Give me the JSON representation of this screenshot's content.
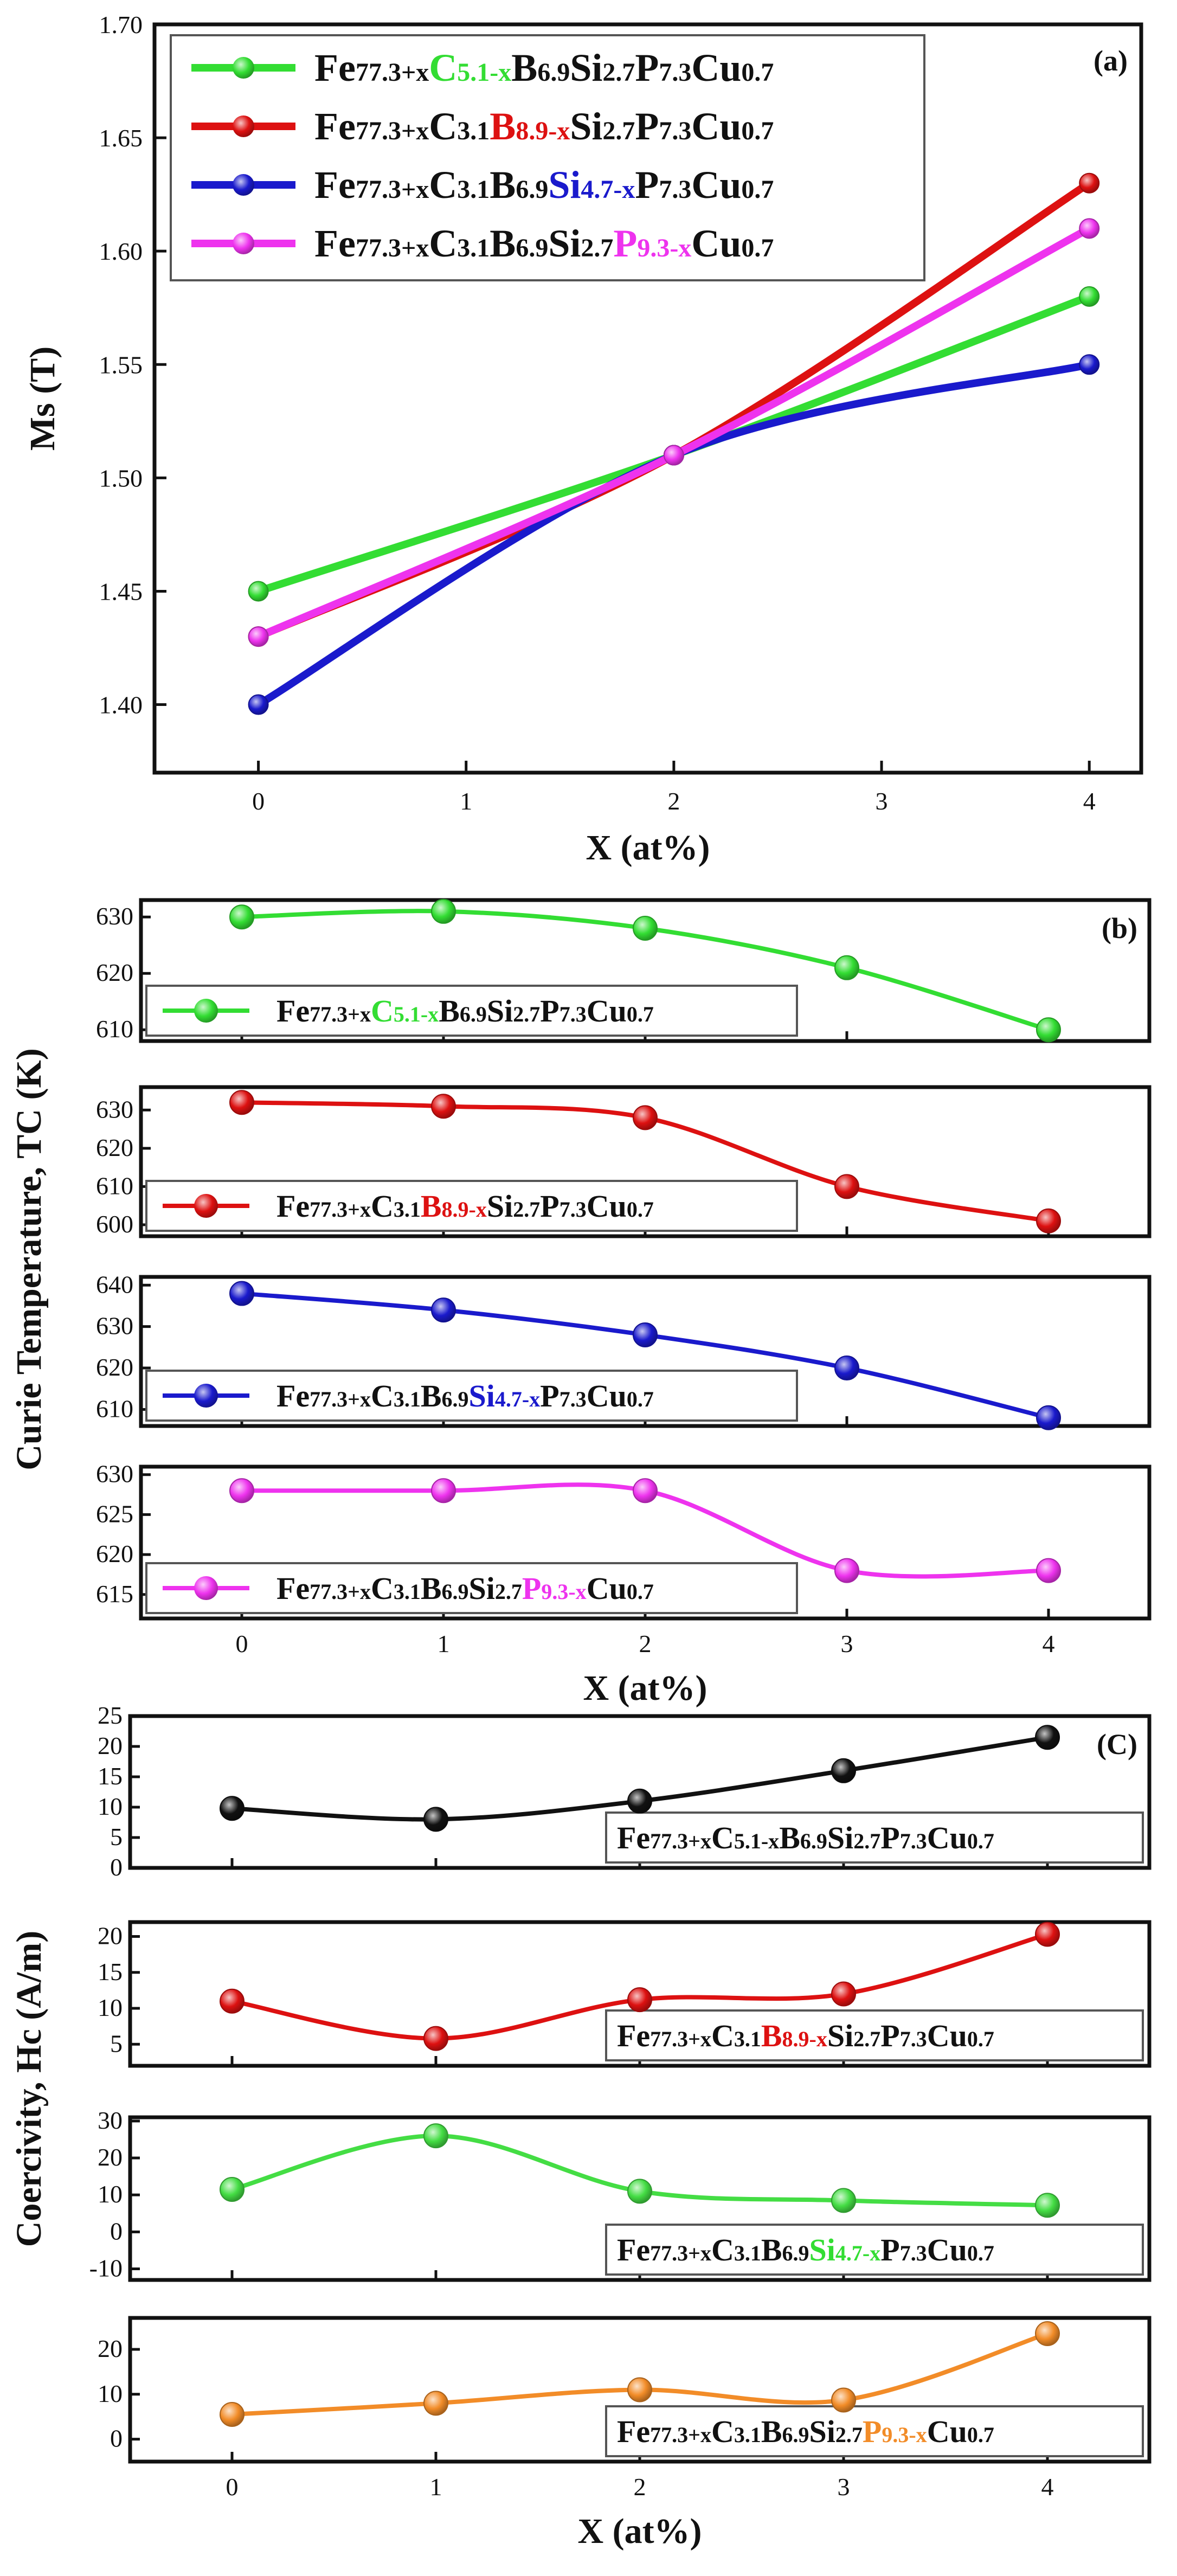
{
  "chart_data": [
    {
      "type": "line",
      "panel_label": "(a)",
      "xlabel": "X (at%)",
      "ylabel": "Ms (T)",
      "xlim": [
        -0.5,
        4.25
      ],
      "ylim": [
        1.37,
        1.7
      ],
      "x_ticks": [
        "0",
        "1",
        "2",
        "3",
        "4"
      ],
      "y_ticks": [
        "1.40",
        "1.45",
        "1.50",
        "1.55",
        "1.60",
        "1.65",
        "1.70"
      ],
      "legend_position": "top-left",
      "series": [
        {
          "name": "Fe77.3+xC5.1-xB6.9Si2.7P7.3Cu0.7",
          "color": "#33dd33",
          "x": [
            0,
            2,
            4
          ],
          "values": [
            1.45,
            1.51,
            1.58
          ],
          "legend": [
            [
              "Fe",
              "#111",
              "n"
            ],
            [
              "77.3+x",
              "#111",
              "s"
            ],
            [
              "C",
              "#33dd33",
              "n"
            ],
            [
              "5.1-x",
              "#33dd33",
              "s"
            ],
            [
              "B",
              "#111",
              "n"
            ],
            [
              "6.9",
              "#111",
              "s"
            ],
            [
              "Si",
              "#111",
              "n"
            ],
            [
              "2.7",
              "#111",
              "s"
            ],
            [
              "P",
              "#111",
              "n"
            ],
            [
              "7.3",
              "#111",
              "s"
            ],
            [
              "Cu",
              "#111",
              "n"
            ],
            [
              "0.7",
              "#111",
              "s"
            ]
          ]
        },
        {
          "name": "Fe77.3+xC3.1B8.9-xSi2.7P7.3Cu0.7",
          "color": "#dd1111",
          "x": [
            0,
            2,
            4
          ],
          "values": [
            1.43,
            1.51,
            1.63
          ],
          "legend": [
            [
              "Fe",
              "#111",
              "n"
            ],
            [
              "77.3+x",
              "#111",
              "s"
            ],
            [
              "C",
              "#111",
              "n"
            ],
            [
              "3.1",
              "#111",
              "s"
            ],
            [
              "B",
              "#dd1111",
              "n"
            ],
            [
              "8.9-x",
              "#dd1111",
              "s"
            ],
            [
              "Si",
              "#111",
              "n"
            ],
            [
              "2.7",
              "#111",
              "s"
            ],
            [
              "P",
              "#111",
              "n"
            ],
            [
              "7.3",
              "#111",
              "s"
            ],
            [
              "Cu",
              "#111",
              "n"
            ],
            [
              "0.7",
              "#111",
              "s"
            ]
          ]
        },
        {
          "name": "Fe77.3+xC3.1B6.9Si4.7-xP7.3Cu0.7",
          "color": "#1a1acc",
          "x": [
            0,
            2,
            4
          ],
          "values": [
            1.4,
            1.51,
            1.55
          ],
          "legend": [
            [
              "Fe",
              "#111",
              "n"
            ],
            [
              "77.3+x",
              "#111",
              "s"
            ],
            [
              "C",
              "#111",
              "n"
            ],
            [
              "3.1",
              "#111",
              "s"
            ],
            [
              "B",
              "#111",
              "n"
            ],
            [
              "6.9",
              "#111",
              "s"
            ],
            [
              "Si",
              "#1a1acc",
              "n"
            ],
            [
              "4.7-x",
              "#1a1acc",
              "s"
            ],
            [
              "P",
              "#111",
              "n"
            ],
            [
              "7.3",
              "#111",
              "s"
            ],
            [
              "Cu",
              "#111",
              "n"
            ],
            [
              "0.7",
              "#111",
              "s"
            ]
          ]
        },
        {
          "name": "Fe77.3+xC3.1B6.9Si2.7P9.3-xCu0.7",
          "color": "#ee33ee",
          "x": [
            0,
            2,
            4
          ],
          "values": [
            1.43,
            1.51,
            1.61
          ],
          "legend": [
            [
              "Fe",
              "#111",
              "n"
            ],
            [
              "77.3+x",
              "#111",
              "s"
            ],
            [
              "C",
              "#111",
              "n"
            ],
            [
              "3.1",
              "#111",
              "s"
            ],
            [
              "B",
              "#111",
              "n"
            ],
            [
              "6.9",
              "#111",
              "s"
            ],
            [
              "Si",
              "#111",
              "n"
            ],
            [
              "2.7",
              "#111",
              "s"
            ],
            [
              "P",
              "#ee33ee",
              "n"
            ],
            [
              "9.3-x",
              "#ee33ee",
              "s"
            ],
            [
              "Cu",
              "#111",
              "n"
            ],
            [
              "0.7",
              "#111",
              "s"
            ]
          ]
        }
      ]
    },
    {
      "type": "line",
      "panel_label": "(b)",
      "xlabel": "X (at%)",
      "ylabel": "Curie Temperature, TC (K)",
      "xlim": [
        -0.5,
        4.5
      ],
      "x_ticks": [
        "0",
        "1",
        "2",
        "3",
        "4"
      ],
      "subplots": [
        {
          "name": "Fe77.3+xC5.1-xB6.9Si2.7P7.3Cu0.7",
          "color": "#33dd33",
          "ylim": [
            608,
            633
          ],
          "y_ticks": [
            610,
            620,
            630
          ],
          "x": [
            0,
            1,
            2,
            3,
            4
          ],
          "values": [
            630,
            631,
            628,
            621,
            610
          ],
          "legend_position": "bottom-left",
          "legend": [
            [
              "Fe",
              "#111",
              "n"
            ],
            [
              "77.3+x",
              "#111",
              "s"
            ],
            [
              "C",
              "#33dd33",
              "n"
            ],
            [
              "5.1-x",
              "#33dd33",
              "s"
            ],
            [
              "B",
              "#111",
              "n"
            ],
            [
              "6.9",
              "#111",
              "s"
            ],
            [
              "Si",
              "#111",
              "n"
            ],
            [
              "2.7",
              "#111",
              "s"
            ],
            [
              "P",
              "#111",
              "n"
            ],
            [
              "7.3",
              "#111",
              "s"
            ],
            [
              "Cu",
              "#111",
              "n"
            ],
            [
              "0.7",
              "#111",
              "s"
            ]
          ]
        },
        {
          "name": "Fe77.3+xC3.1B8.9-xSi2.7P7.3Cu0.7",
          "color": "#dd1111",
          "ylim": [
            597,
            636
          ],
          "y_ticks": [
            600,
            610,
            620,
            630
          ],
          "x": [
            0,
            1,
            2,
            3,
            4
          ],
          "values": [
            632,
            631,
            628,
            610,
            601
          ],
          "legend_position": "bottom-left",
          "legend": [
            [
              "Fe",
              "#111",
              "n"
            ],
            [
              "77.3+x",
              "#111",
              "s"
            ],
            [
              "C",
              "#111",
              "n"
            ],
            [
              "3.1",
              "#111",
              "s"
            ],
            [
              "B",
              "#dd1111",
              "n"
            ],
            [
              "8.9-x",
              "#dd1111",
              "s"
            ],
            [
              "Si",
              "#111",
              "n"
            ],
            [
              "2.7",
              "#111",
              "s"
            ],
            [
              "P",
              "#111",
              "n"
            ],
            [
              "7.3",
              "#111",
              "s"
            ],
            [
              "Cu",
              "#111",
              "n"
            ],
            [
              "0.7",
              "#111",
              "s"
            ]
          ]
        },
        {
          "name": "Fe77.3+xC3.1B6.9Si4.7-xP7.3Cu0.7",
          "color": "#1a1acc",
          "ylim": [
            606,
            642
          ],
          "y_ticks": [
            610,
            620,
            630,
            640
          ],
          "x": [
            0,
            1,
            2,
            3,
            4
          ],
          "values": [
            638,
            634,
            628,
            620,
            608
          ],
          "legend_position": "bottom-left",
          "legend": [
            [
              "Fe",
              "#111",
              "n"
            ],
            [
              "77.3+x",
              "#111",
              "s"
            ],
            [
              "C",
              "#111",
              "n"
            ],
            [
              "3.1",
              "#111",
              "s"
            ],
            [
              "B",
              "#111",
              "n"
            ],
            [
              "6.9",
              "#111",
              "s"
            ],
            [
              "Si",
              "#1a1acc",
              "n"
            ],
            [
              "4.7-x",
              "#1a1acc",
              "s"
            ],
            [
              "P",
              "#111",
              "n"
            ],
            [
              "7.3",
              "#111",
              "s"
            ],
            [
              "Cu",
              "#111",
              "n"
            ],
            [
              "0.7",
              "#111",
              "s"
            ]
          ]
        },
        {
          "name": "Fe77.3+xC3.1B6.9Si2.7P9.3-xCu0.7",
          "color": "#ee33ee",
          "ylim": [
            612,
            631
          ],
          "y_ticks": [
            615,
            620,
            625,
            630
          ],
          "x": [
            0,
            1,
            2,
            3,
            4
          ],
          "values": [
            628,
            628,
            628,
            618,
            618
          ],
          "legend_position": "bottom-left",
          "legend": [
            [
              "Fe",
              "#111",
              "n"
            ],
            [
              "77.3+x",
              "#111",
              "s"
            ],
            [
              "C",
              "#111",
              "n"
            ],
            [
              "3.1",
              "#111",
              "s"
            ],
            [
              "B",
              "#111",
              "n"
            ],
            [
              "6.9",
              "#111",
              "s"
            ],
            [
              "Si",
              "#111",
              "n"
            ],
            [
              "2.7",
              "#111",
              "s"
            ],
            [
              "P",
              "#ee33ee",
              "n"
            ],
            [
              "9.3-x",
              "#ee33ee",
              "s"
            ],
            [
              "Cu",
              "#111",
              "n"
            ],
            [
              "0.7",
              "#111",
              "s"
            ]
          ]
        }
      ]
    },
    {
      "type": "line",
      "panel_label": "(C)",
      "xlabel": "X (at%)",
      "ylabel": "Coercivity, Hc (A/m)",
      "xlim": [
        -0.5,
        4.5
      ],
      "x_ticks": [
        "0",
        "1",
        "2",
        "3",
        "4"
      ],
      "subplots": [
        {
          "name": "Fe77.3+xC5.1-xB6.9Si2.7P7.3Cu0.7",
          "color": "#111111",
          "ylim": [
            0,
            25
          ],
          "y_ticks": [
            0,
            5,
            10,
            15,
            20,
            25
          ],
          "x": [
            0,
            1,
            2,
            3,
            4
          ],
          "values": [
            9.8,
            8,
            11,
            16,
            21.5
          ],
          "legend_position": "bottom-right",
          "legend": [
            [
              "Fe",
              "#111",
              "n"
            ],
            [
              "77.3+x",
              "#111",
              "s"
            ],
            [
              "C",
              "#111",
              "n"
            ],
            [
              "5.1-x",
              "#111",
              "s"
            ],
            [
              "B",
              "#111",
              "n"
            ],
            [
              "6.9",
              "#111",
              "s"
            ],
            [
              "Si",
              "#111",
              "n"
            ],
            [
              "2.7",
              "#111",
              "s"
            ],
            [
              "P",
              "#111",
              "n"
            ],
            [
              "7.3",
              "#111",
              "s"
            ],
            [
              "Cu",
              "#111",
              "n"
            ],
            [
              "0.7",
              "#111",
              "s"
            ]
          ]
        },
        {
          "name": "Fe77.3+xC3.1B8.9-xSi2.7P7.3Cu0.7",
          "color": "#dd1111",
          "ylim": [
            2,
            22
          ],
          "y_ticks": [
            5,
            10,
            15,
            20
          ],
          "x": [
            0,
            1,
            2,
            3,
            4
          ],
          "values": [
            11,
            5.8,
            11.2,
            12,
            20.3
          ],
          "legend_position": "bottom-right",
          "legend": [
            [
              "Fe",
              "#111",
              "n"
            ],
            [
              "77.3+x",
              "#111",
              "s"
            ],
            [
              "C",
              "#111",
              "n"
            ],
            [
              "3.1",
              "#111",
              "s"
            ],
            [
              "B",
              "#dd1111",
              "n"
            ],
            [
              "8.9-x",
              "#dd1111",
              "s"
            ],
            [
              "Si",
              "#111",
              "n"
            ],
            [
              "2.7",
              "#111",
              "s"
            ],
            [
              "P",
              "#111",
              "n"
            ],
            [
              "7.3",
              "#111",
              "s"
            ],
            [
              "Cu",
              "#111",
              "n"
            ],
            [
              "0.7",
              "#111",
              "s"
            ]
          ]
        },
        {
          "name": "Fe77.3+xC3.1B6.9Si4.7-xP7.3Cu0.7",
          "color": "#44dd44",
          "ylim": [
            -13,
            31
          ],
          "y_ticks": [
            -10,
            0,
            10,
            20,
            30
          ],
          "x": [
            0,
            1,
            2,
            3,
            4
          ],
          "values": [
            11.5,
            26,
            11,
            8.5,
            7.2
          ],
          "legend_position": "bottom-right",
          "legend": [
            [
              "Fe",
              "#111",
              "n"
            ],
            [
              "77.3+x",
              "#111",
              "s"
            ],
            [
              "C",
              "#111",
              "n"
            ],
            [
              "3.1",
              "#111",
              "s"
            ],
            [
              "B",
              "#111",
              "n"
            ],
            [
              "6.9",
              "#111",
              "s"
            ],
            [
              "Si",
              "#33dd33",
              "n"
            ],
            [
              "4.7-x",
              "#33dd33",
              "s"
            ],
            [
              "P",
              "#111",
              "n"
            ],
            [
              "7.3",
              "#111",
              "s"
            ],
            [
              "Cu",
              "#111",
              "n"
            ],
            [
              "0.7",
              "#111",
              "s"
            ]
          ]
        },
        {
          "name": "Fe77.3+xC3.1B6.9Si2.7P9.3-xCu0.7",
          "color": "#f28c28",
          "ylim": [
            -5,
            27
          ],
          "y_ticks": [
            0,
            10,
            20
          ],
          "x": [
            0,
            1,
            2,
            3,
            4
          ],
          "values": [
            5.5,
            8,
            11,
            8.7,
            23.5
          ],
          "legend_position": "bottom-right",
          "legend": [
            [
              "Fe",
              "#111",
              "n"
            ],
            [
              "77.3+x",
              "#111",
              "s"
            ],
            [
              "C",
              "#111",
              "n"
            ],
            [
              "3.1",
              "#111",
              "s"
            ],
            [
              "B",
              "#111",
              "n"
            ],
            [
              "6.9",
              "#111",
              "s"
            ],
            [
              "Si",
              "#111",
              "n"
            ],
            [
              "2.7",
              "#111",
              "s"
            ],
            [
              "P",
              "#f28c28",
              "n"
            ],
            [
              "9.3-x",
              "#f28c28",
              "s"
            ],
            [
              "Cu",
              "#111",
              "n"
            ],
            [
              "0.7",
              "#111",
              "s"
            ]
          ]
        }
      ]
    }
  ]
}
